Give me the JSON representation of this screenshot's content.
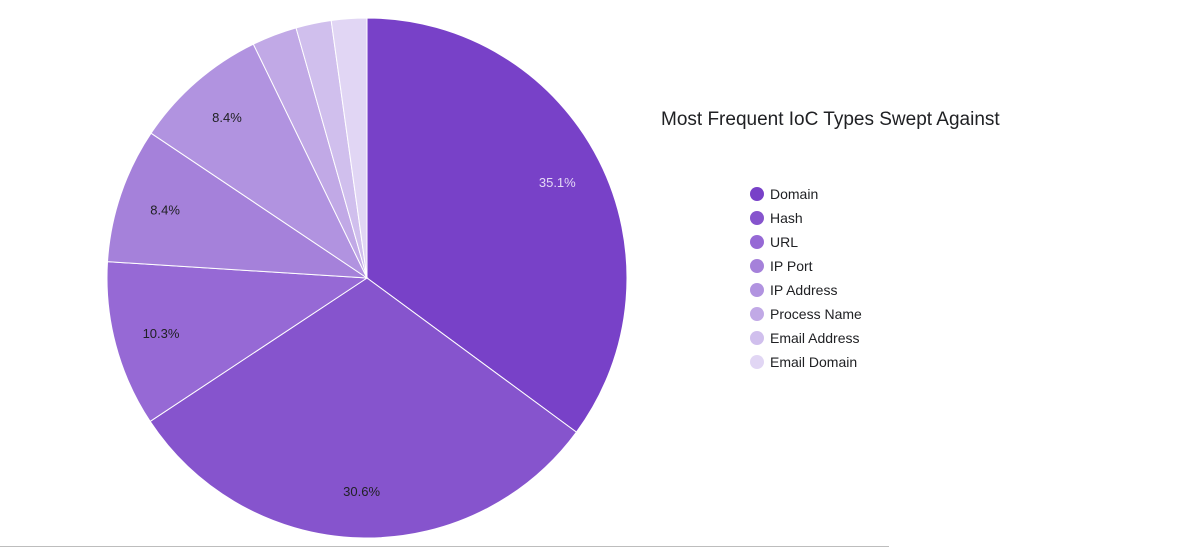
{
  "chart_data": {
    "type": "pie",
    "title": "Most Frequent IoC Types Swept Against",
    "legend_position": "right",
    "slices": [
      {
        "label": "Domain",
        "value": 35.1,
        "percent_label": "35.1%",
        "color": "#7841c8"
      },
      {
        "label": "Hash",
        "value": 30.6,
        "percent_label": "30.6%",
        "color": "#8654cd"
      },
      {
        "label": "URL",
        "value": 10.3,
        "percent_label": "10.3%",
        "color": "#9669d5"
      },
      {
        "label": "IP Port",
        "value": 8.4,
        "percent_label": "8.4%",
        "color": "#a581da"
      },
      {
        "label": "IP Address",
        "value": 8.4,
        "percent_label": "8.4%",
        "color": "#b193e0"
      },
      {
        "label": "Process Name",
        "value": 2.8,
        "percent_label": "",
        "color": "#c1a9e6"
      },
      {
        "label": "Email Address",
        "value": 2.2,
        "percent_label": "",
        "color": "#d0bfed"
      },
      {
        "label": "Email Domain",
        "value": 2.2,
        "percent_label": "",
        "color": "#e1d6f4"
      }
    ],
    "start_angle_deg": 0,
    "direction": "clockwise"
  }
}
